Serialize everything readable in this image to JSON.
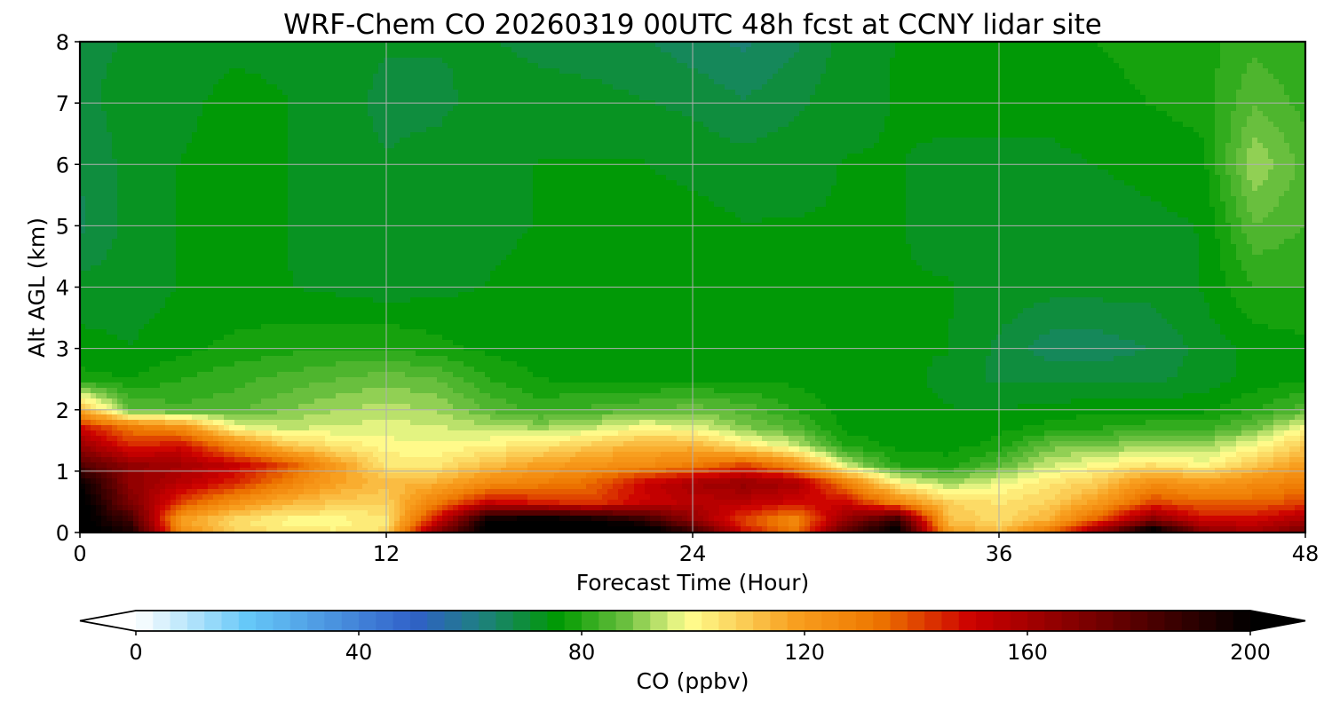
{
  "chart_data": {
    "type": "heatmap",
    "title": "WRF-Chem CO  20260319 00UTC 48h fcst at CCNY lidar site",
    "xlabel": "Forecast Time (Hour)",
    "ylabel": "Alt AGL (km)",
    "x_ticks": [
      "0",
      "12",
      "24",
      "36",
      "48"
    ],
    "y_ticks": [
      "0",
      "1",
      "2",
      "3",
      "4",
      "5",
      "6",
      "7",
      "8"
    ],
    "xlim": [
      0,
      48
    ],
    "ylim": [
      0,
      8
    ],
    "grid": true,
    "colorbar": {
      "label": "CO  (ppbv)",
      "ticks": [
        "0",
        "40",
        "80",
        "120",
        "160",
        "200"
      ],
      "range": [
        0,
        200
      ],
      "extend": "both",
      "orientation": "horizontal",
      "placement": "bottom",
      "stops": [
        {
          "value": 0,
          "color": "#ffffff"
        },
        {
          "value": 20,
          "color": "#66c8f8"
        },
        {
          "value": 50,
          "color": "#3060c8"
        },
        {
          "value": 62,
          "color": "#1e8080"
        },
        {
          "value": 76,
          "color": "#009a00"
        },
        {
          "value": 88,
          "color": "#6cc040"
        },
        {
          "value": 99,
          "color": "#ffff90"
        },
        {
          "value": 118,
          "color": "#f8a020"
        },
        {
          "value": 133,
          "color": "#ee7700"
        },
        {
          "value": 150,
          "color": "#cc0000"
        },
        {
          "value": 175,
          "color": "#6a0000"
        },
        {
          "value": 200,
          "color": "#000000"
        }
      ],
      "levels": 65
    },
    "hours": [
      0,
      2,
      4,
      6,
      8,
      10,
      12,
      14,
      16,
      18,
      20,
      22,
      24,
      26,
      28,
      30,
      32,
      34,
      36,
      38,
      40,
      42,
      44,
      46,
      48
    ],
    "altitudes_km": [
      0,
      0.2,
      0.5,
      0.8,
      1.1,
      1.4,
      1.7,
      2.0,
      2.5,
      3.0,
      4.0,
      5.0,
      6.0,
      7.0,
      8.0
    ],
    "co_ppbv": [
      [
        205,
        195,
        125,
        108,
        104,
        102,
        106,
        170,
        205,
        210,
        210,
        210,
        190,
        150,
        132,
        180,
        205,
        120,
        112,
        135,
        170,
        210,
        170,
        160,
        175
      ],
      [
        205,
        185,
        118,
        106,
        100,
        100,
        103,
        150,
        200,
        205,
        200,
        190,
        165,
        140,
        125,
        165,
        190,
        112,
        106,
        115,
        140,
        170,
        150,
        150,
        160
      ],
      [
        205,
        170,
        140,
        125,
        115,
        110,
        108,
        130,
        150,
        145,
        140,
        150,
        155,
        155,
        150,
        150,
        125,
        108,
        104,
        108,
        120,
        140,
        135,
        135,
        140
      ],
      [
        200,
        165,
        155,
        145,
        130,
        118,
        112,
        115,
        125,
        130,
        135,
        150,
        160,
        165,
        160,
        130,
        102,
        92,
        98,
        104,
        110,
        125,
        120,
        125,
        130
      ],
      [
        180,
        165,
        160,
        152,
        140,
        120,
        104,
        104,
        112,
        118,
        122,
        125,
        130,
        140,
        125,
        95,
        80,
        78,
        86,
        95,
        100,
        105,
        100,
        110,
        120
      ],
      [
        165,
        145,
        150,
        130,
        112,
        105,
        100,
        99,
        102,
        105,
        110,
        115,
        115,
        105,
        96,
        80,
        76,
        76,
        78,
        88,
        90,
        92,
        92,
        100,
        110
      ],
      [
        150,
        132,
        125,
        100,
        95,
        96,
        97,
        96,
        94,
        92,
        95,
        100,
        98,
        90,
        85,
        76,
        75,
        75,
        76,
        78,
        80,
        82,
        82,
        88,
        100
      ],
      [
        115,
        86,
        84,
        85,
        89,
        92,
        94,
        92,
        86,
        82,
        84,
        86,
        88,
        85,
        80,
        75,
        75,
        74,
        74,
        75,
        76,
        76,
        76,
        80,
        85
      ],
      [
        78,
        77,
        80,
        82,
        84,
        86,
        88,
        86,
        80,
        77,
        76,
        76,
        76,
        76,
        76,
        75,
        75,
        73,
        70,
        70,
        70,
        70,
        72,
        75,
        76
      ],
      [
        75,
        74,
        76,
        78,
        79,
        80,
        80,
        78,
        76,
        75,
        75,
        75,
        75,
        75,
        75,
        75,
        74,
        74,
        70,
        66,
        66,
        68,
        72,
        75,
        76
      ],
      [
        72,
        72,
        74,
        74,
        74,
        73,
        72,
        73,
        74,
        75,
        75,
        75,
        75,
        75,
        75,
        75,
        74,
        74,
        73,
        72,
        72,
        72,
        74,
        80,
        80
      ],
      [
        67,
        72,
        74,
        75,
        74,
        72,
        71,
        72,
        73,
        74,
        75,
        75,
        75,
        74,
        74,
        74,
        74,
        73,
        72,
        72,
        72,
        73,
        74,
        86,
        83
      ],
      [
        68,
        72,
        74,
        75,
        74,
        72,
        71,
        72,
        73,
        74,
        74,
        74,
        73,
        72,
        73,
        74,
        74,
        73,
        73,
        73,
        74,
        75,
        76,
        92,
        85
      ],
      [
        70,
        72,
        73,
        75,
        74,
        72,
        70,
        70,
        72,
        72,
        72,
        71,
        70,
        68,
        70,
        73,
        74,
        75,
        75,
        75,
        76,
        77,
        78,
        86,
        82
      ],
      [
        70,
        71,
        72,
        73,
        73,
        72,
        71,
        71,
        71,
        70,
        69,
        68,
        66,
        64,
        67,
        72,
        74,
        76,
        76,
        76,
        77,
        78,
        79,
        82,
        80
      ]
    ]
  }
}
